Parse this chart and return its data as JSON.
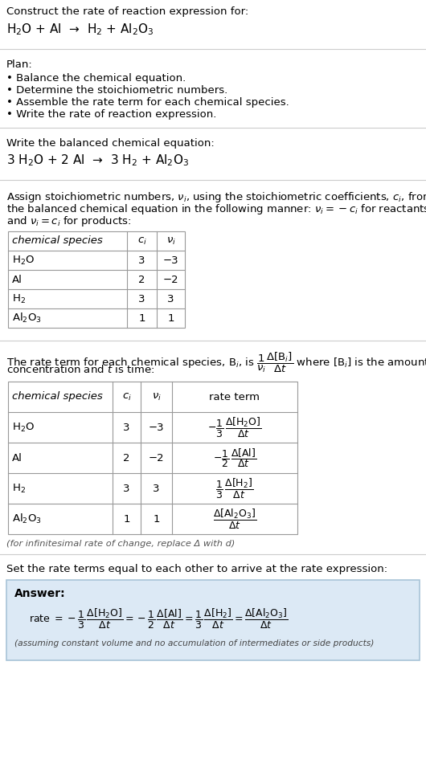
{
  "title_line1": "Construct the rate of reaction expression for:",
  "title_line2": "H$_2$O + Al  →  H$_2$ + Al$_2$O$_3$",
  "plan_header": "Plan:",
  "plan_items": [
    "• Balance the chemical equation.",
    "• Determine the stoichiometric numbers.",
    "• Assemble the rate term for each chemical species.",
    "• Write the rate of reaction expression."
  ],
  "balanced_header": "Write the balanced chemical equation:",
  "balanced_eq": "3 H$_2$O + 2 Al  →  3 H$_2$ + Al$_2$O$_3$",
  "stoich_intro_lines": [
    "Assign stoichiometric numbers, $\\nu_i$, using the stoichiometric coefficients, $c_i$, from",
    "the balanced chemical equation in the following manner: $\\nu_i = -c_i$ for reactants",
    "and $\\nu_i = c_i$ for products:"
  ],
  "table1_headers": [
    "chemical species",
    "$c_i$",
    "$\\nu_i$"
  ],
  "table1_rows": [
    [
      "H$_2$O",
      "3",
      "−3"
    ],
    [
      "Al",
      "2",
      "−2"
    ],
    [
      "H$_2$",
      "3",
      "3"
    ],
    [
      "Al$_2$O$_3$",
      "1",
      "1"
    ]
  ],
  "rate_term_intro_lines": [
    "The rate term for each chemical species, B$_i$, is $\\dfrac{1}{\\nu_i}\\dfrac{\\Delta[\\mathrm{B}_i]}{\\Delta t}$ where [B$_i$] is the amount",
    "concentration and $t$ is time:"
  ],
  "table2_headers": [
    "chemical species",
    "$c_i$",
    "$\\nu_i$",
    "rate term"
  ],
  "table2_rows": [
    [
      "H$_2$O",
      "3",
      "−3",
      "$-\\dfrac{1}{3}\\,\\dfrac{\\Delta[\\mathrm{H_2O}]}{\\Delta t}$"
    ],
    [
      "Al",
      "2",
      "−2",
      "$-\\dfrac{1}{2}\\,\\dfrac{\\Delta[\\mathrm{Al}]}{\\Delta t}$"
    ],
    [
      "H$_2$",
      "3",
      "3",
      "$\\dfrac{1}{3}\\,\\dfrac{\\Delta[\\mathrm{H_2}]}{\\Delta t}$"
    ],
    [
      "Al$_2$O$_3$",
      "1",
      "1",
      "$\\dfrac{\\Delta[\\mathrm{Al_2O_3}]}{\\Delta t}$"
    ]
  ],
  "infinitesimal_note": "(for infinitesimal rate of change, replace Δ with d)",
  "set_equal_header": "Set the rate terms equal to each other to arrive at the rate expression:",
  "answer_label": "Answer:",
  "answer_box_color": "#dce9f5",
  "answer_border_color": "#a8c4d8",
  "assuming_note": "(assuming constant volume and no accumulation of intermediates or side products)",
  "bg_color": "#ffffff",
  "text_color": "#000000",
  "col_sep": "#999999",
  "sep_color": "#cccccc"
}
